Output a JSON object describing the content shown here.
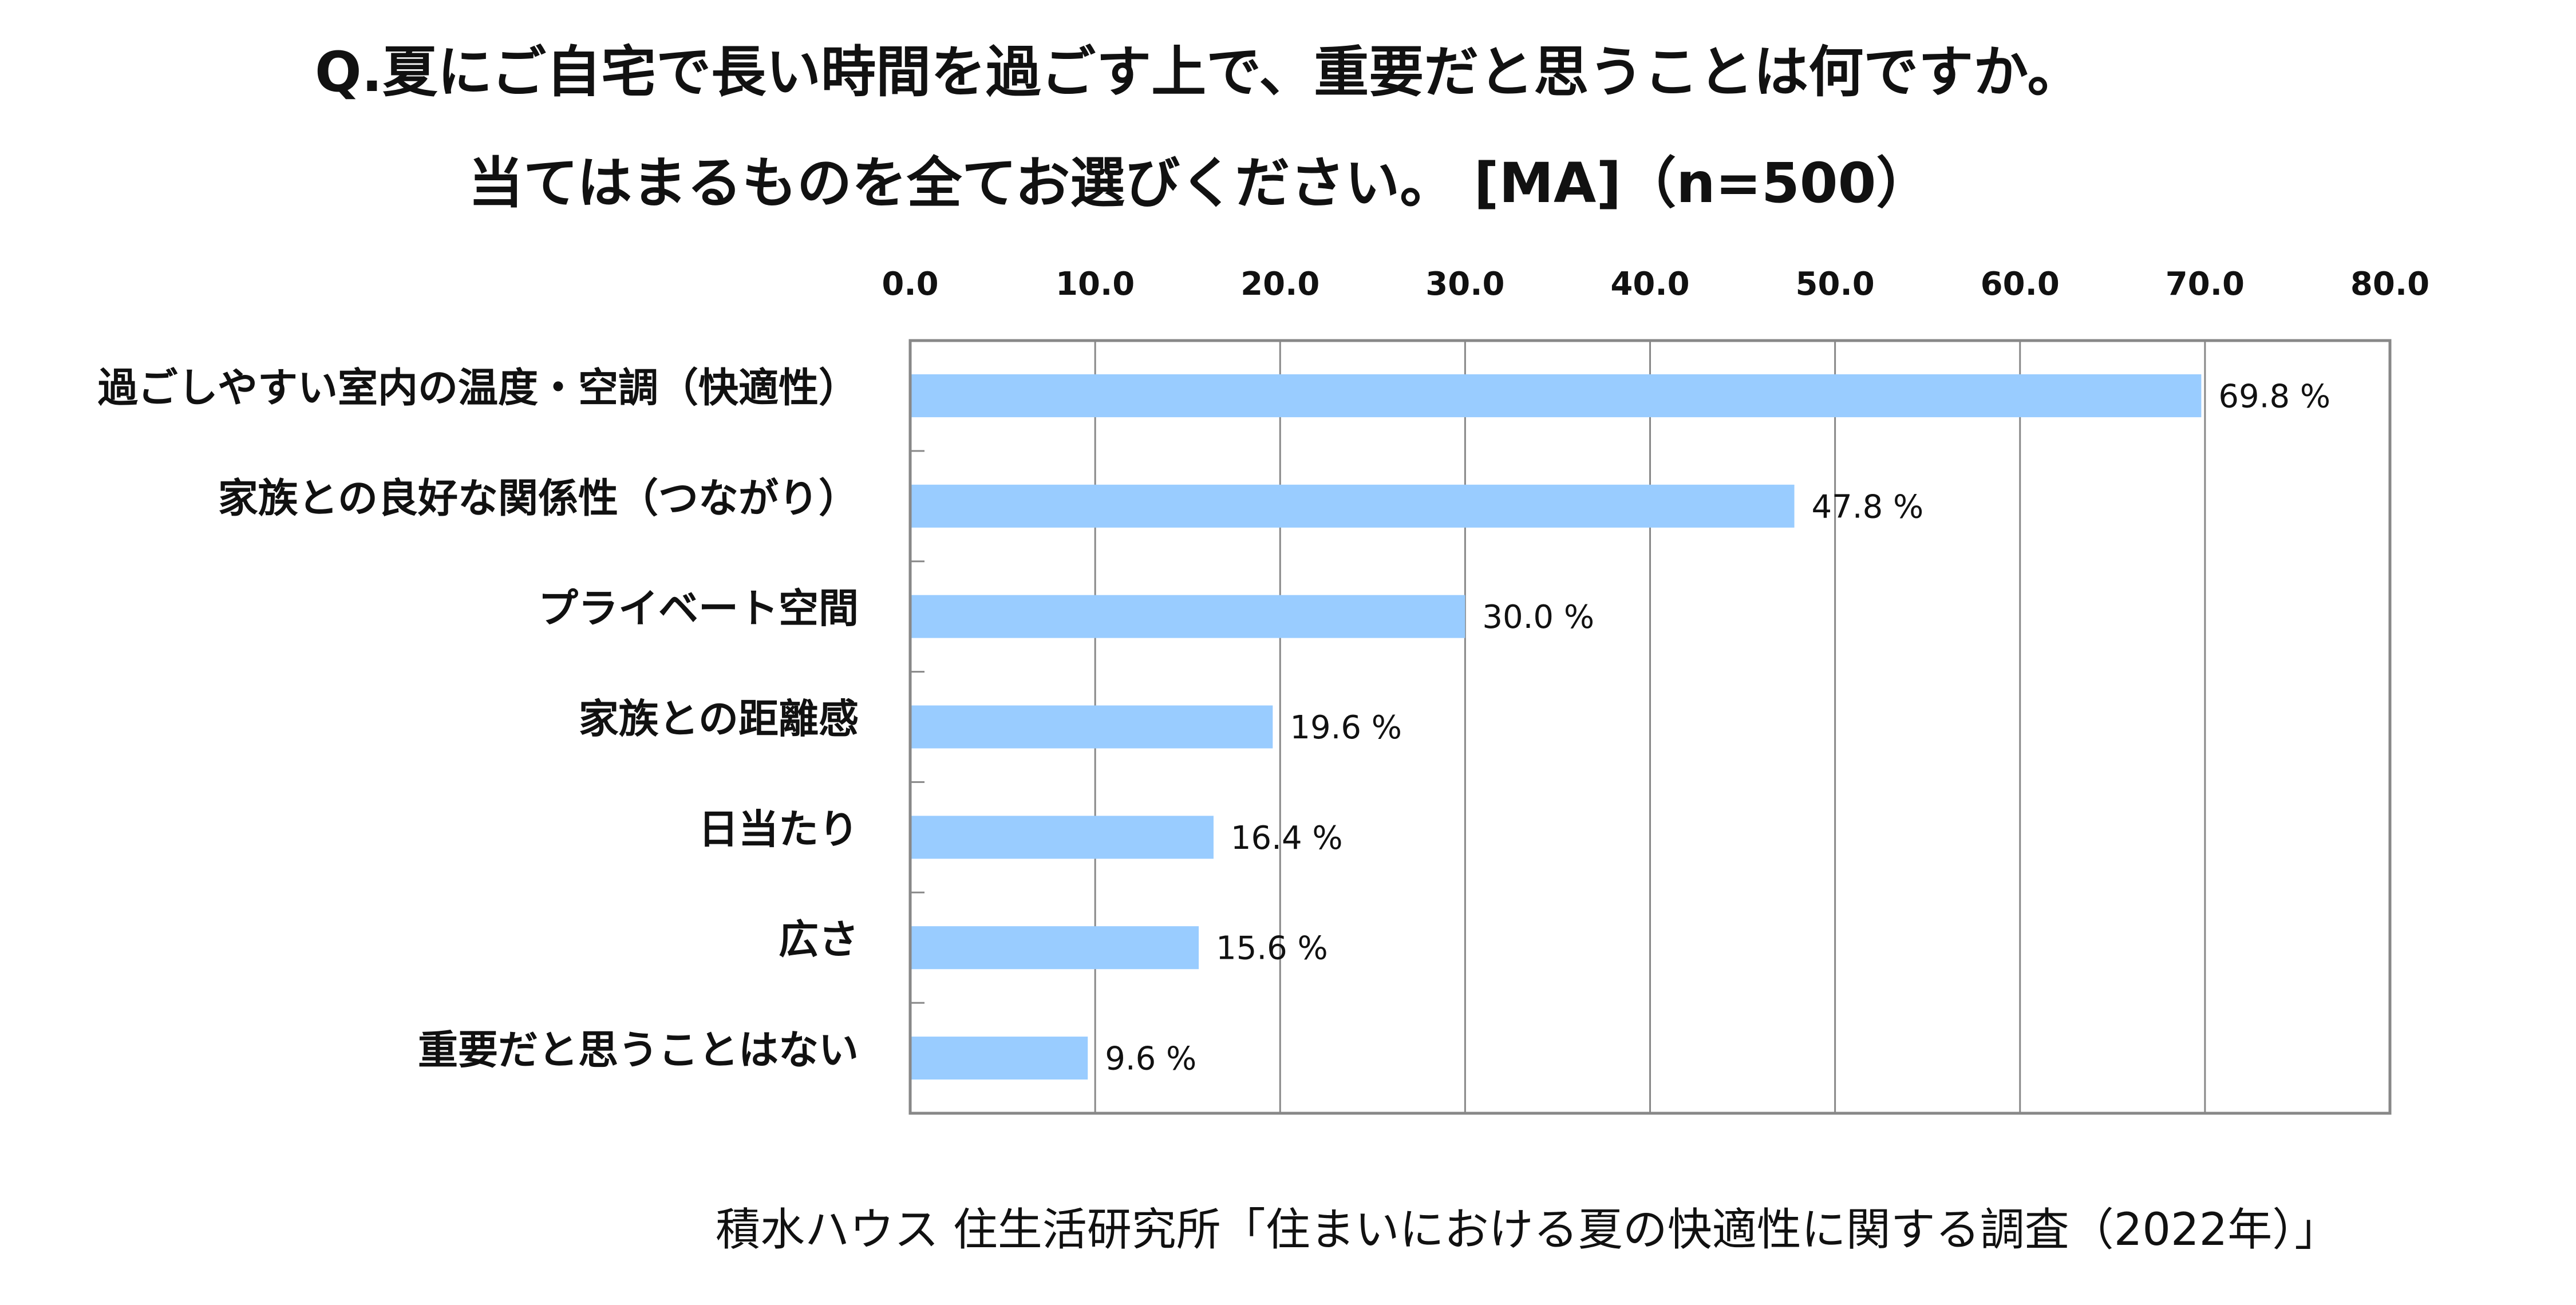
{
  "title": {
    "line1": "Q.夏にご自宅で長い時間を過ごす上で、重要だと思うことは何ですか。",
    "line2": "当てはまるものを全てお選びください。 [MA]（n=500）"
  },
  "source": "積水ハウス 住生活研究所「住まいにおける夏の快適性に関する調査（2022年）」",
  "chart_data": {
    "type": "bar",
    "orientation": "horizontal",
    "categories": [
      "過ごしやすい室内の温度・空調（快適性）",
      "家族との良好な関係性（つながり）",
      "プライベート空間",
      "家族との距離感",
      "日当たり",
      "広さ",
      "重要だと思うことはない"
    ],
    "values": [
      69.8,
      47.8,
      30.0,
      19.6,
      16.4,
      15.6,
      9.6
    ],
    "value_labels": [
      "69.8 %",
      "47.8 %",
      "30.0 %",
      "19.6 %",
      "16.4 %",
      "15.6 %",
      "9.6 %"
    ],
    "xlim": [
      0,
      80
    ],
    "x_ticks": [
      "0.0",
      "10.0",
      "20.0",
      "30.0",
      "40.0",
      "50.0",
      "60.0",
      "70.0",
      "80.0"
    ],
    "x_axis_position": "top",
    "grid": true,
    "bar_color": "#99ccff",
    "grid_color": "#888888",
    "border_color": "#888888"
  }
}
